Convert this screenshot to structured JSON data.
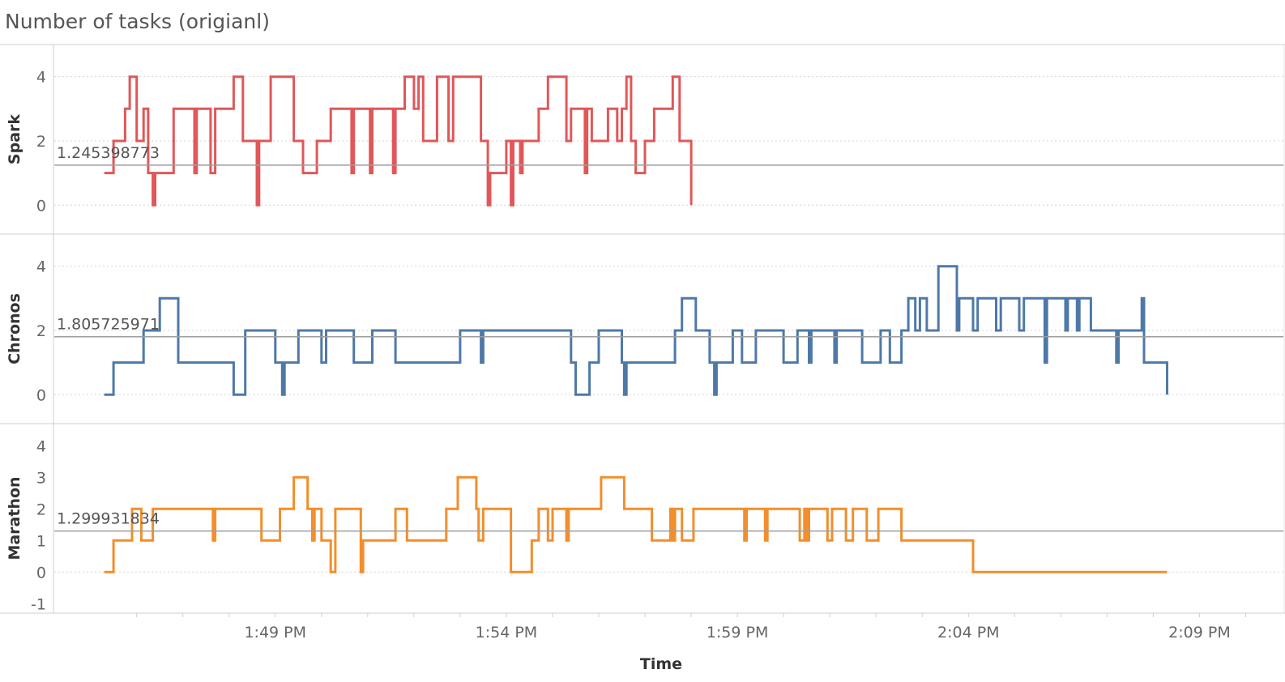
{
  "title": "Number of tasks (origianl)",
  "chart_data": {
    "type": "line",
    "xlabel": "Time",
    "x_ticks": [
      "1:49 PM",
      "1:54 PM",
      "1:59 PM",
      "2:04 PM",
      "2:09 PM"
    ],
    "x_tick_minutes": [
      49,
      54,
      59,
      64,
      69
    ],
    "x_range_minutes": [
      44.2,
      70.5
    ],
    "panels": [
      {
        "name": "Spark",
        "color": "#e15759",
        "reference_value": 1.245398773,
        "reference_label": "1.245398773",
        "ylim": [
          -0.9,
          5.0
        ],
        "y_ticks": [
          0,
          2,
          4
        ],
        "gridlines": [
          0,
          2,
          4
        ],
        "steps": [
          [
            45.3,
            1
          ],
          [
            45.5,
            2
          ],
          [
            45.7,
            2
          ],
          [
            45.75,
            3
          ],
          [
            45.85,
            4
          ],
          [
            45.95,
            4
          ],
          [
            46.0,
            2
          ],
          [
            46.1,
            2
          ],
          [
            46.15,
            3
          ],
          [
            46.25,
            1
          ],
          [
            46.35,
            0
          ],
          [
            46.4,
            1
          ],
          [
            46.8,
            3
          ],
          [
            47.2,
            3
          ],
          [
            47.25,
            1
          ],
          [
            47.3,
            3
          ],
          [
            47.6,
            1
          ],
          [
            47.7,
            3
          ],
          [
            48.0,
            3
          ],
          [
            48.1,
            4
          ],
          [
            48.3,
            2
          ],
          [
            48.5,
            2
          ],
          [
            48.6,
            0
          ],
          [
            48.65,
            2
          ],
          [
            48.9,
            4
          ],
          [
            49.3,
            4
          ],
          [
            49.4,
            2
          ],
          [
            49.6,
            1
          ],
          [
            49.9,
            2
          ],
          [
            50.1,
            2
          ],
          [
            50.2,
            3
          ],
          [
            50.6,
            3
          ],
          [
            50.65,
            1
          ],
          [
            50.7,
            3
          ],
          [
            51.0,
            3
          ],
          [
            51.05,
            1
          ],
          [
            51.1,
            3
          ],
          [
            51.5,
            3
          ],
          [
            51.55,
            1
          ],
          [
            51.6,
            3
          ],
          [
            51.8,
            4
          ],
          [
            52.0,
            3
          ],
          [
            52.1,
            4
          ],
          [
            52.2,
            2
          ],
          [
            52.4,
            2
          ],
          [
            52.5,
            4
          ],
          [
            52.7,
            4
          ],
          [
            52.75,
            2
          ],
          [
            52.85,
            4
          ],
          [
            53.1,
            4
          ],
          [
            53.3,
            4
          ],
          [
            53.45,
            2
          ],
          [
            53.6,
            0
          ],
          [
            53.65,
            1
          ],
          [
            53.9,
            1
          ],
          [
            54.0,
            2
          ],
          [
            54.1,
            0
          ],
          [
            54.15,
            2
          ],
          [
            54.3,
            1
          ],
          [
            54.35,
            2
          ],
          [
            54.6,
            2
          ],
          [
            54.7,
            3
          ],
          [
            54.9,
            4
          ],
          [
            55.2,
            4
          ],
          [
            55.3,
            2
          ],
          [
            55.4,
            3
          ],
          [
            55.65,
            3
          ],
          [
            55.7,
            1
          ],
          [
            55.75,
            3
          ],
          [
            55.85,
            2
          ],
          [
            56.1,
            2
          ],
          [
            56.2,
            3
          ],
          [
            56.4,
            2
          ],
          [
            56.5,
            3
          ],
          [
            56.6,
            4
          ],
          [
            56.7,
            2
          ],
          [
            56.8,
            1
          ],
          [
            56.95,
            1
          ],
          [
            57.0,
            2
          ],
          [
            57.2,
            3
          ],
          [
            57.5,
            3
          ],
          [
            57.6,
            4
          ],
          [
            57.75,
            2
          ],
          [
            57.9,
            2
          ],
          [
            58.0,
            0
          ]
        ]
      },
      {
        "name": "Chronos",
        "color": "#4e79a7",
        "reference_value": 1.805725971,
        "reference_label": "1.805725971",
        "ylim": [
          -0.9,
          5.0
        ],
        "y_ticks": [
          0,
          2,
          4
        ],
        "gridlines": [
          0,
          2,
          4
        ],
        "steps": [
          [
            45.3,
            0
          ],
          [
            45.5,
            1
          ],
          [
            46.0,
            1
          ],
          [
            46.15,
            2
          ],
          [
            46.4,
            2
          ],
          [
            46.5,
            3
          ],
          [
            46.85,
            3
          ],
          [
            46.9,
            1
          ],
          [
            48.0,
            1
          ],
          [
            48.1,
            0
          ],
          [
            48.3,
            0
          ],
          [
            48.35,
            2
          ],
          [
            48.9,
            2
          ],
          [
            49.0,
            1
          ],
          [
            49.15,
            0
          ],
          [
            49.2,
            1
          ],
          [
            49.4,
            1
          ],
          [
            49.5,
            2
          ],
          [
            49.9,
            2
          ],
          [
            50.0,
            1
          ],
          [
            50.1,
            2
          ],
          [
            50.6,
            2
          ],
          [
            50.7,
            1
          ],
          [
            51.0,
            1
          ],
          [
            51.1,
            2
          ],
          [
            51.5,
            2
          ],
          [
            51.6,
            1
          ],
          [
            52.0,
            1
          ],
          [
            52.9,
            1
          ],
          [
            53.0,
            2
          ],
          [
            53.4,
            2
          ],
          [
            53.45,
            1
          ],
          [
            53.5,
            2
          ],
          [
            55.0,
            2
          ],
          [
            55.3,
            2
          ],
          [
            55.4,
            1
          ],
          [
            55.5,
            0
          ],
          [
            55.7,
            0
          ],
          [
            55.8,
            1
          ],
          [
            55.9,
            1
          ],
          [
            56.0,
            2
          ],
          [
            56.4,
            2
          ],
          [
            56.5,
            1
          ],
          [
            56.55,
            0
          ],
          [
            56.6,
            1
          ],
          [
            57.4,
            1
          ],
          [
            57.6,
            1
          ],
          [
            57.65,
            2
          ],
          [
            57.8,
            3
          ],
          [
            58.0,
            3
          ],
          [
            58.1,
            2
          ],
          [
            58.3,
            2
          ],
          [
            58.4,
            1
          ],
          [
            58.5,
            0
          ],
          [
            58.55,
            1
          ],
          [
            58.8,
            1
          ],
          [
            58.9,
            2
          ],
          [
            59.0,
            2
          ],
          [
            59.1,
            1
          ],
          [
            59.3,
            1
          ],
          [
            59.4,
            2
          ],
          [
            59.9,
            2
          ],
          [
            60.0,
            1
          ],
          [
            60.2,
            1
          ],
          [
            60.3,
            2
          ],
          [
            60.5,
            2
          ],
          [
            60.55,
            1
          ],
          [
            60.6,
            2
          ],
          [
            61.0,
            2
          ],
          [
            61.1,
            1
          ],
          [
            61.15,
            2
          ],
          [
            61.6,
            2
          ],
          [
            61.7,
            1
          ],
          [
            62.0,
            1
          ],
          [
            62.1,
            2
          ],
          [
            62.2,
            2
          ],
          [
            62.3,
            1
          ],
          [
            62.5,
            1
          ],
          [
            62.55,
            2
          ],
          [
            62.7,
            3
          ],
          [
            62.8,
            3
          ],
          [
            62.85,
            2
          ],
          [
            62.95,
            3
          ],
          [
            63.0,
            3
          ],
          [
            63.1,
            2
          ],
          [
            63.3,
            2
          ],
          [
            63.35,
            4
          ],
          [
            63.7,
            4
          ],
          [
            63.75,
            2
          ],
          [
            63.8,
            3
          ],
          [
            64.0,
            3
          ],
          [
            64.1,
            2
          ],
          [
            64.2,
            3
          ],
          [
            64.5,
            3
          ],
          [
            64.6,
            2
          ],
          [
            64.7,
            3
          ],
          [
            65.0,
            3
          ],
          [
            65.1,
            2
          ],
          [
            65.2,
            3
          ],
          [
            65.6,
            3
          ],
          [
            65.65,
            1
          ],
          [
            65.7,
            3
          ],
          [
            66.0,
            3
          ],
          [
            66.1,
            2
          ],
          [
            66.15,
            3
          ],
          [
            66.3,
            3
          ],
          [
            66.35,
            2
          ],
          [
            66.4,
            3
          ],
          [
            66.6,
            3
          ],
          [
            66.65,
            2
          ],
          [
            67.0,
            2
          ],
          [
            67.15,
            2
          ],
          [
            67.2,
            1
          ],
          [
            67.25,
            2
          ],
          [
            67.7,
            2
          ],
          [
            67.75,
            3
          ],
          [
            67.8,
            1
          ],
          [
            68.2,
            1
          ],
          [
            68.3,
            0
          ]
        ]
      },
      {
        "name": "Marathon",
        "color": "#f28e2b",
        "reference_value": 1.299931834,
        "reference_label": "1.299931834",
        "ylim": [
          -1.3,
          4.7
        ],
        "y_ticks": [
          -1,
          0,
          1,
          2,
          3,
          4
        ],
        "gridlines": [
          0
        ],
        "steps": [
          [
            45.3,
            0
          ],
          [
            45.5,
            1
          ],
          [
            45.8,
            1
          ],
          [
            45.9,
            2
          ],
          [
            46.05,
            2
          ],
          [
            46.1,
            1
          ],
          [
            46.3,
            1
          ],
          [
            46.35,
            2
          ],
          [
            47.6,
            2
          ],
          [
            47.65,
            1
          ],
          [
            47.7,
            2
          ],
          [
            48.6,
            2
          ],
          [
            48.7,
            1
          ],
          [
            49.0,
            1
          ],
          [
            49.1,
            2
          ],
          [
            49.35,
            2
          ],
          [
            49.4,
            3
          ],
          [
            49.65,
            3
          ],
          [
            49.7,
            2
          ],
          [
            49.8,
            1
          ],
          [
            49.85,
            2
          ],
          [
            49.95,
            2
          ],
          [
            50.0,
            1
          ],
          [
            50.15,
            1
          ],
          [
            50.2,
            0
          ],
          [
            50.3,
            2
          ],
          [
            50.8,
            2
          ],
          [
            50.85,
            0
          ],
          [
            50.9,
            1
          ],
          [
            51.4,
            1
          ],
          [
            51.6,
            2
          ],
          [
            51.8,
            2
          ],
          [
            51.85,
            1
          ],
          [
            52.6,
            1
          ],
          [
            52.7,
            2
          ],
          [
            52.9,
            2
          ],
          [
            52.95,
            3
          ],
          [
            53.3,
            3
          ],
          [
            53.35,
            2
          ],
          [
            53.4,
            1
          ],
          [
            53.5,
            2
          ],
          [
            54.0,
            2
          ],
          [
            54.1,
            0
          ],
          [
            54.5,
            0
          ],
          [
            54.55,
            1
          ],
          [
            54.7,
            2
          ],
          [
            54.85,
            2
          ],
          [
            54.9,
            1
          ],
          [
            55.0,
            2
          ],
          [
            55.2,
            2
          ],
          [
            55.3,
            1
          ],
          [
            55.35,
            2
          ],
          [
            56.0,
            2
          ],
          [
            56.05,
            3
          ],
          [
            56.5,
            3
          ],
          [
            56.55,
            2
          ],
          [
            57.0,
            2
          ],
          [
            57.15,
            1
          ],
          [
            57.5,
            1
          ],
          [
            57.55,
            2
          ],
          [
            57.6,
            1
          ],
          [
            57.65,
            2
          ],
          [
            57.75,
            2
          ],
          [
            57.8,
            1
          ],
          [
            58.0,
            1
          ],
          [
            58.05,
            2
          ],
          [
            59.1,
            2
          ],
          [
            59.15,
            1
          ],
          [
            59.2,
            2
          ],
          [
            59.5,
            2
          ],
          [
            59.6,
            1
          ],
          [
            59.65,
            2
          ],
          [
            59.8,
            2
          ],
          [
            60.0,
            2
          ],
          [
            60.3,
            2
          ],
          [
            60.35,
            1
          ],
          [
            60.45,
            2
          ],
          [
            60.5,
            1
          ],
          [
            60.55,
            2
          ],
          [
            60.9,
            2
          ],
          [
            60.95,
            1
          ],
          [
            61.05,
            2
          ],
          [
            61.3,
            2
          ],
          [
            61.35,
            1
          ],
          [
            61.5,
            2
          ],
          [
            61.75,
            2
          ],
          [
            61.8,
            1
          ],
          [
            62.0,
            1
          ],
          [
            62.05,
            2
          ],
          [
            62.5,
            2
          ],
          [
            62.55,
            1
          ],
          [
            64.0,
            1
          ],
          [
            64.1,
            0
          ],
          [
            68.3,
            0
          ]
        ]
      }
    ]
  }
}
